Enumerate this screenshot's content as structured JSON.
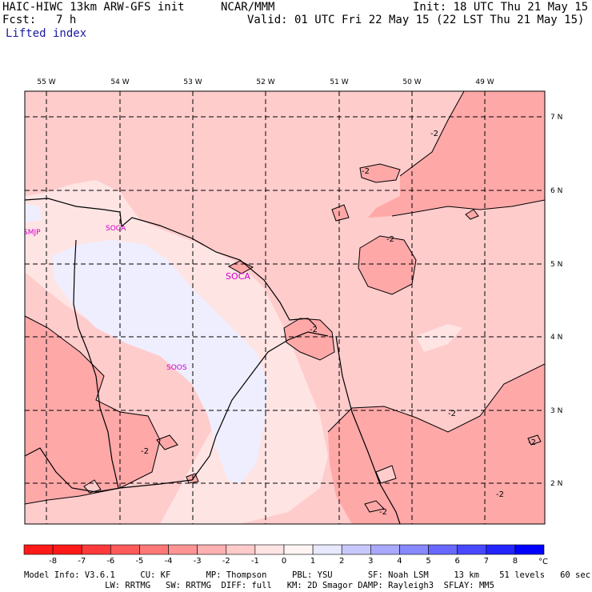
{
  "header": {
    "title_left": "HAIC-HIWC 13km ARW-GFS init",
    "org": "NCAR/MMM",
    "init": "Init: 18 UTC Thu 21 May 15",
    "fcst_label": "Fcst:",
    "fcst_value": "7 h",
    "valid": "Valid: 01 UTC Fri 22 May 15 (22 LST Thu 21 May 15)",
    "field": "Lifted index"
  },
  "map": {
    "lon_labels": [
      "55 W",
      "54 W",
      "53 W",
      "52 W",
      "51 W",
      "50 W",
      "49 W"
    ],
    "lat_labels": [
      "7 N",
      "6 N",
      "5 N",
      "4 N",
      "3 N",
      "2 N"
    ],
    "contour_labels": [
      "-2",
      "-2",
      "-2",
      "-2",
      "-2",
      "-2",
      "-2",
      "-2",
      "-2"
    ],
    "stations": [
      "SMJP",
      "SOCA",
      "SOCA",
      "SOOS"
    ]
  },
  "colorbar": {
    "ticks": [
      "-8",
      "-7",
      "-6",
      "-5",
      "-4",
      "-3",
      "-2",
      "-1",
      "0",
      "1",
      "2",
      "3",
      "4",
      "5",
      "6",
      "7",
      "8"
    ],
    "unit": "°C",
    "colors": [
      "#ff1a1a",
      "#ff3a3a",
      "#ff5a5a",
      "#ff7878",
      "#ff9494",
      "#ffb0b0",
      "#ffcaca",
      "#ffe4e4",
      "#fff4f4",
      "#e8e8ff",
      "#c8c8ff",
      "#a8a8ff",
      "#8888ff",
      "#6868ff",
      "#4848ff",
      "#2424ff",
      "#0000ff"
    ]
  },
  "footer": {
    "line1": "Model Info: V3.6.1     CU: KF       MP: Thompson     PBL: YSU       SF: Noah LSM     13 km    51 levels   60 sec",
    "line2": "                LW: RRTMG   SW: RRTMG  DIFF: full   KM: 2D Smagor DAMP: Rayleigh3  SFLAY: MM5"
  }
}
